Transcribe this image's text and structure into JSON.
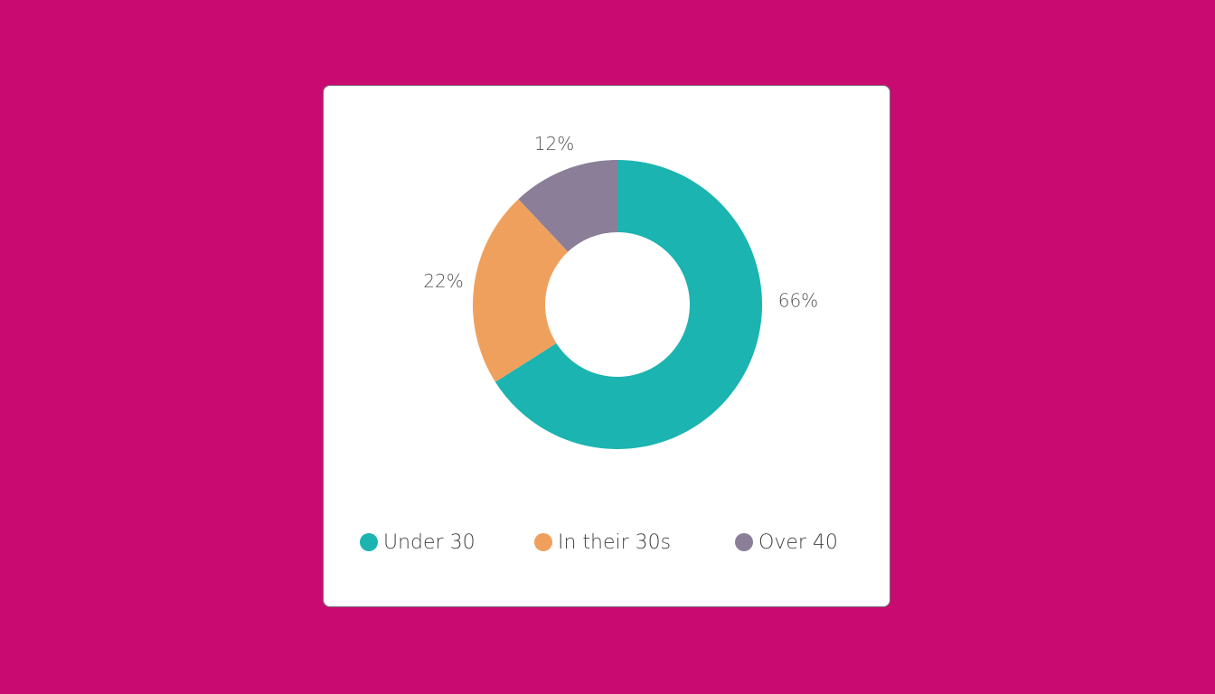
{
  "page": {
    "background_color": "#C90B71"
  },
  "chart_data": {
    "type": "pie",
    "variant": "donut",
    "categories": [
      "Under 30",
      "In their 30s",
      "Over 40"
    ],
    "values": [
      66,
      22,
      12
    ],
    "value_labels": [
      "66%",
      "22%",
      "12%"
    ],
    "colors": [
      "#1BB4B0",
      "#F0A05D",
      "#8B7E98"
    ],
    "label_color": "#555555",
    "legend_text_color": "#444444",
    "legend_position": "bottom"
  }
}
